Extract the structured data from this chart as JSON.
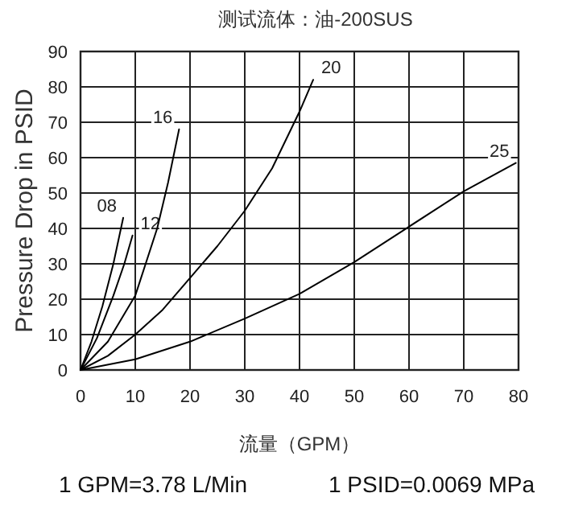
{
  "chart_data": {
    "type": "line",
    "title": "测试流体：油-200SUS",
    "xlabel": "流量（GPM）",
    "ylabel": "Pressure Drop in PSID",
    "annotations": [
      "1 GPM=3.78 L/Min",
      "1 PSID=0.0069 MPa"
    ],
    "xlim": [
      0,
      80
    ],
    "ylim": [
      0,
      90
    ],
    "xticks": [
      0,
      10,
      20,
      30,
      40,
      50,
      60,
      70,
      80
    ],
    "yticks": [
      0,
      10,
      20,
      30,
      40,
      50,
      60,
      70,
      80,
      90
    ],
    "grid": true,
    "series": [
      {
        "name": "08",
        "color": "#000000",
        "x": [
          0,
          2,
          4,
          6,
          7.8
        ],
        "values": [
          0,
          8,
          18,
          30,
          43
        ]
      },
      {
        "name": "12",
        "color": "#000000",
        "x": [
          0,
          3,
          6,
          8,
          9.5
        ],
        "values": [
          0,
          9,
          21,
          30,
          38
        ]
      },
      {
        "name": "16",
        "color": "#000000",
        "x": [
          0,
          5,
          10,
          14,
          16,
          18
        ],
        "values": [
          0,
          8,
          21,
          40,
          53,
          68
        ]
      },
      {
        "name": "20",
        "color": "#000000",
        "x": [
          0,
          5,
          10,
          15,
          20,
          25,
          30,
          35,
          40,
          42.5
        ],
        "values": [
          0,
          4,
          10,
          17,
          26,
          35,
          45,
          57,
          73,
          82
        ]
      },
      {
        "name": "25",
        "color": "#000000",
        "x": [
          0,
          10,
          20,
          30,
          40,
          50,
          60,
          70,
          79.5
        ],
        "values": [
          0,
          3,
          8,
          14.5,
          21.5,
          30.5,
          40.5,
          50.5,
          58.5
        ]
      }
    ]
  }
}
